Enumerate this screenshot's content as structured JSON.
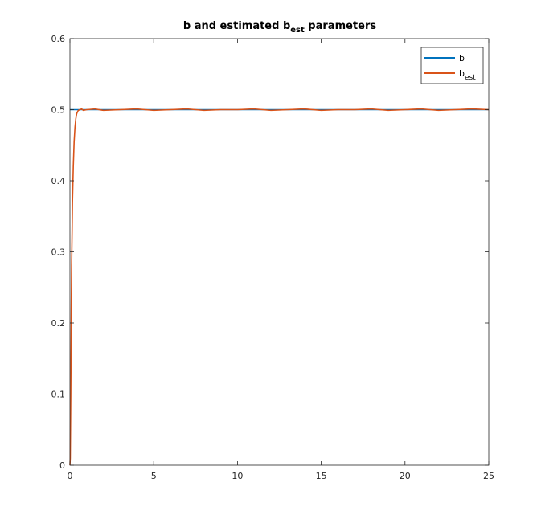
{
  "chart_data": {
    "type": "line",
    "title": {
      "main": "b and estimated b",
      "subscript": "est",
      "suffix": " parameters"
    },
    "xlabel": "",
    "ylabel": "",
    "xlim": [
      0,
      25
    ],
    "ylim": [
      0,
      0.6
    ],
    "xticks": [
      0,
      5,
      10,
      15,
      20,
      25
    ],
    "xtick_labels": [
      "0",
      "5",
      "10",
      "15",
      "20",
      "25"
    ],
    "yticks": [
      0,
      0.1,
      0.2,
      0.3,
      0.4,
      0.5,
      0.6
    ],
    "ytick_labels": [
      "0",
      "0.1",
      "0.2",
      "0.3",
      "0.4",
      "0.5",
      "0.6"
    ],
    "grid": false,
    "legend": {
      "placement": "top-right",
      "entries": [
        {
          "label": "b",
          "subscript": ""
        },
        {
          "label": "b",
          "subscript": "est"
        }
      ]
    },
    "series": [
      {
        "name": "b",
        "color": "#0072BD",
        "x": [
          0,
          25
        ],
        "y": [
          0.5,
          0.5
        ]
      },
      {
        "name": "b_est",
        "color": "#D95319",
        "x": [
          0,
          0.02,
          0.05,
          0.08,
          0.1,
          0.13,
          0.15,
          0.2,
          0.25,
          0.3,
          0.35,
          0.4,
          0.45,
          0.5,
          0.6,
          0.7,
          0.8,
          1.0,
          1.5,
          2,
          3,
          4,
          5,
          6,
          7,
          8,
          9,
          10,
          11,
          12,
          13,
          14,
          15,
          16,
          17,
          18,
          19,
          20,
          21,
          22,
          23,
          24,
          25
        ],
        "y": [
          0,
          0.01,
          0.1,
          0.22,
          0.28,
          0.33,
          0.37,
          0.42,
          0.455,
          0.475,
          0.487,
          0.494,
          0.497,
          0.499,
          0.5,
          0.501,
          0.499,
          0.5,
          0.501,
          0.499,
          0.5,
          0.501,
          0.499,
          0.5,
          0.501,
          0.499,
          0.5,
          0.5,
          0.501,
          0.499,
          0.5,
          0.501,
          0.499,
          0.5,
          0.5,
          0.501,
          0.499,
          0.5,
          0.501,
          0.499,
          0.5,
          0.501,
          0.5
        ]
      }
    ]
  }
}
